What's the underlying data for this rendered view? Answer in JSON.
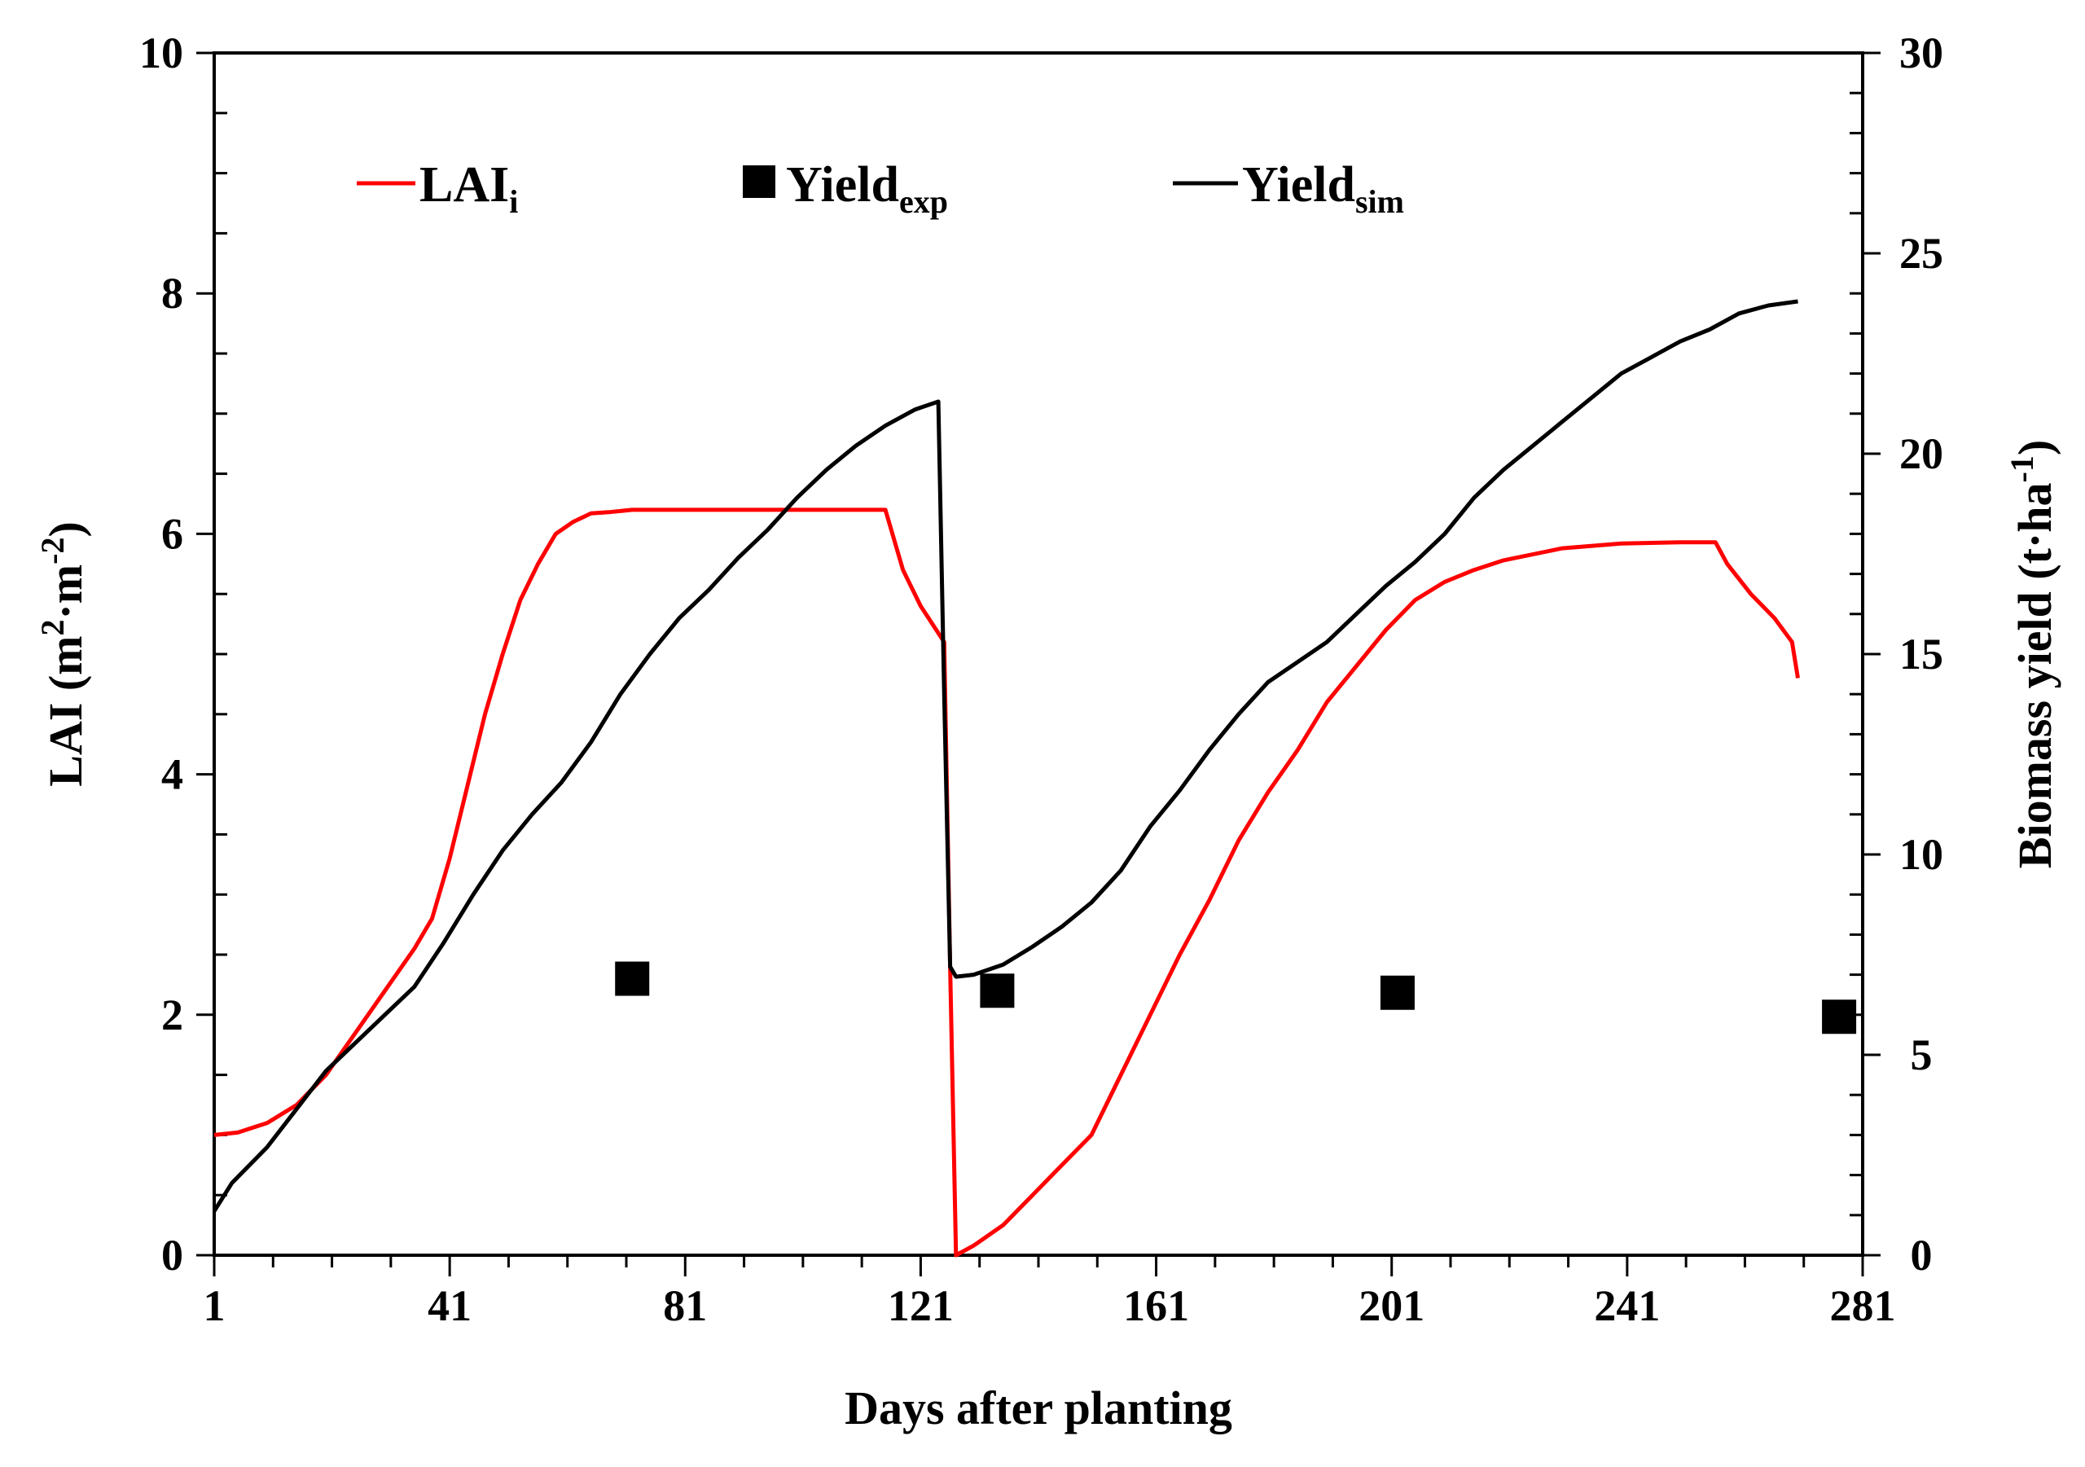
{
  "chart_data": {
    "type": "line",
    "title": "",
    "xlabel": "Days after planting",
    "ylabel_left": {
      "main": "LAI (m",
      "sup1": "2",
      "mid": "·m",
      "sup2": "-2",
      "end": ")"
    },
    "ylabel_right": {
      "main": "Biomass yield (t·ha",
      "sup": "-1",
      "end": ")"
    },
    "xlim": [
      1,
      281
    ],
    "ylim_left": [
      0,
      10
    ],
    "ylim_right": [
      0,
      30
    ],
    "xticks": [
      1,
      41,
      81,
      121,
      161,
      201,
      241,
      281
    ],
    "yticks_left": [
      0,
      2,
      4,
      6,
      8,
      10
    ],
    "yticks_right": [
      0,
      5,
      10,
      15,
      20,
      25,
      30
    ],
    "legend": [
      {
        "key": "lai",
        "label": "LAI",
        "sub": "i",
        "marker": "line",
        "color": "#ff0000"
      },
      {
        "key": "yexp",
        "label": "Yield",
        "sub": "exp",
        "marker": "square",
        "color": "#000000"
      },
      {
        "key": "ysim",
        "label": "Yield",
        "sub": "sim",
        "marker": "line",
        "color": "#000000"
      }
    ],
    "series": [
      {
        "name": "LAI_i",
        "axis": "left",
        "kind": "line",
        "color": "#ff0000",
        "x": [
          1,
          5,
          10,
          15,
          20,
          25,
          30,
          35,
          38,
          41,
          44,
          47,
          50,
          53,
          56,
          59,
          62,
          65,
          68,
          72,
          80,
          100,
          115,
          118,
          121,
          125,
          126,
          127,
          130,
          135,
          140,
          145,
          150,
          155,
          160,
          165,
          170,
          175,
          180,
          185,
          190,
          195,
          200,
          205,
          210,
          215,
          220,
          230,
          240,
          250,
          256,
          258,
          262,
          266,
          269,
          270
        ],
        "y": [
          1.0,
          1.02,
          1.1,
          1.25,
          1.5,
          1.85,
          2.2,
          2.55,
          2.8,
          3.3,
          3.9,
          4.5,
          5.0,
          5.45,
          5.75,
          6.0,
          6.1,
          6.17,
          6.18,
          6.2,
          6.2,
          6.2,
          6.2,
          5.7,
          5.4,
          5.1,
          2.4,
          0.0,
          0.08,
          0.25,
          0.5,
          0.75,
          1.0,
          1.5,
          2.0,
          2.5,
          2.95,
          3.45,
          3.85,
          4.2,
          4.6,
          4.9,
          5.2,
          5.45,
          5.6,
          5.7,
          5.78,
          5.88,
          5.92,
          5.93,
          5.93,
          5.75,
          5.5,
          5.3,
          5.1,
          4.8
        ]
      },
      {
        "name": "Yield_sim",
        "axis": "right",
        "kind": "line",
        "color": "#000000",
        "x": [
          1,
          4,
          10,
          20,
          30,
          35,
          40,
          45,
          50,
          55,
          60,
          65,
          70,
          75,
          80,
          85,
          90,
          95,
          100,
          105,
          110,
          115,
          120,
          124,
          125,
          126,
          127,
          130,
          135,
          140,
          145,
          150,
          155,
          160,
          165,
          170,
          175,
          180,
          185,
          190,
          195,
          200,
          205,
          210,
          215,
          220,
          225,
          230,
          235,
          240,
          245,
          250,
          255,
          260,
          265,
          270
        ],
        "y": [
          1.1,
          1.8,
          2.7,
          4.6,
          6.0,
          6.7,
          7.8,
          9.0,
          10.1,
          11.0,
          11.8,
          12.8,
          14.0,
          15.0,
          15.9,
          16.6,
          17.4,
          18.1,
          18.9,
          19.6,
          20.2,
          20.7,
          21.1,
          21.3,
          14.0,
          7.2,
          6.95,
          7.0,
          7.25,
          7.7,
          8.2,
          8.8,
          9.6,
          10.7,
          11.6,
          12.6,
          13.5,
          14.3,
          14.8,
          15.3,
          16.0,
          16.7,
          17.3,
          18.0,
          18.9,
          19.6,
          20.2,
          20.8,
          21.4,
          22.0,
          22.4,
          22.8,
          23.1,
          23.5,
          23.7,
          23.8
        ]
      },
      {
        "name": "Yield_exp",
        "axis": "right",
        "kind": "scatter",
        "color": "#000000",
        "x": [
          72,
          134,
          202,
          277
        ],
        "y": [
          6.9,
          6.6,
          6.55,
          5.95
        ]
      }
    ]
  }
}
